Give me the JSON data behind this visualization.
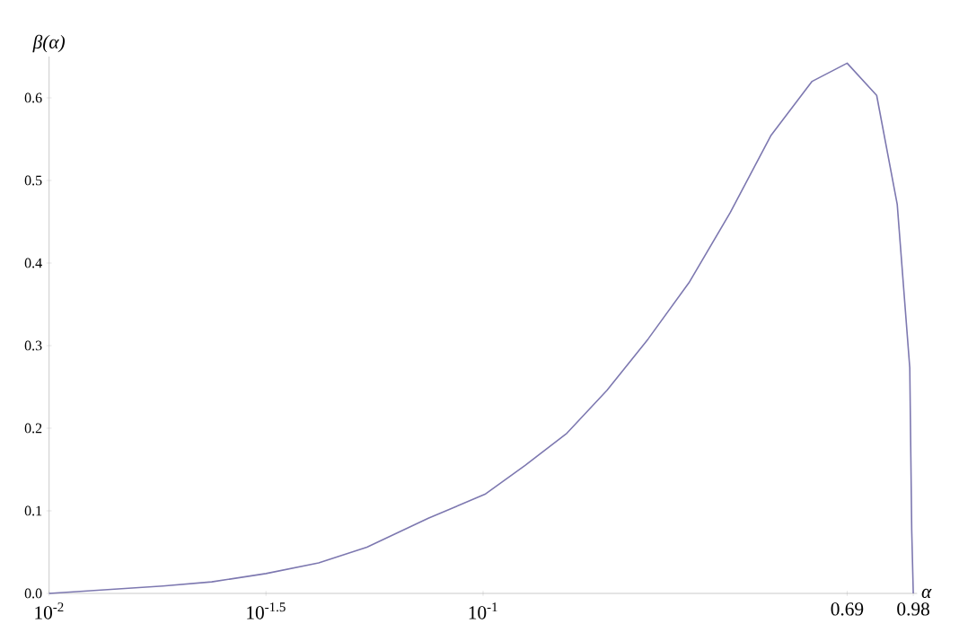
{
  "chart_data": {
    "type": "line",
    "xlabel": "α",
    "ylabel": "β(α)",
    "log": "x",
    "xlim": [
      0.01,
      1.0
    ],
    "ylim": [
      0,
      0.65
    ],
    "xticks": [
      {
        "value": 0.01,
        "label": "10$^{-2}$"
      },
      {
        "value": 0.0316,
        "label": "10$^{-1.5}$"
      },
      {
        "value": 0.1,
        "label": "10$^{-1}$"
      },
      0.69,
      0.98
    ],
    "yticks": [
      {
        "value": 0,
        "label": "0.0"
      },
      0.1,
      0.2,
      0.3,
      0.4,
      0.5,
      0.6
    ],
    "series": [
      {
        "color": "#7d78b0",
        "x": [
          0.01,
          0.0183,
          0.0237,
          0.0316,
          0.0418,
          0.054,
          0.0748,
          0.101,
          0.125,
          0.156,
          0.193,
          0.24,
          0.298,
          0.371,
          0.46,
          0.573,
          0.69,
          0.807,
          0.9,
          0.962,
          0.972,
          0.98
        ],
        "values": [
          0,
          0.009,
          0.014,
          0.024,
          0.037,
          0.056,
          0.091,
          0.12,
          0.155,
          0.194,
          0.246,
          0.308,
          0.376,
          0.461,
          0.554,
          0.62,
          0.642,
          0.603,
          0.471,
          0.273,
          0.076,
          0
        ]
      }
    ]
  }
}
